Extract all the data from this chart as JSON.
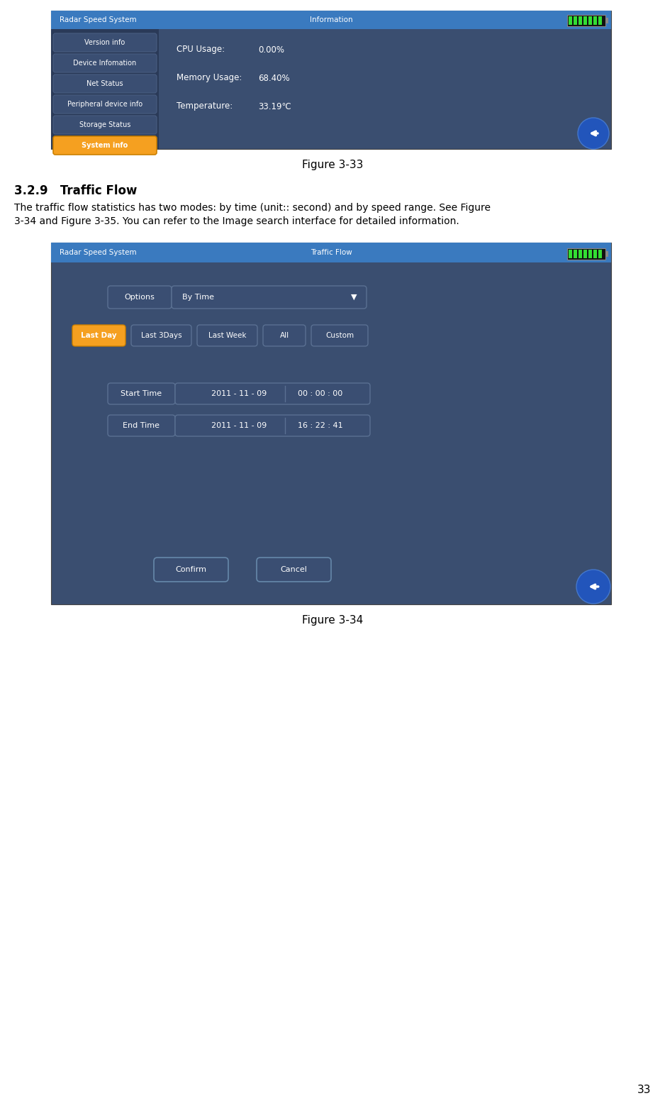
{
  "page_bg": "#ffffff",
  "fig1_caption": "Figure 3-33",
  "fig2_caption": "Figure 3-34",
  "section_title": "3.2.9   Traffic Flow",
  "section_body_line1": "The traffic flow statistics has two modes: by time (unit:: second) and by speed range. See Figure",
  "section_body_line2": "3-34 and Figure 3-35. You can refer to the Image search interface for detailed information.",
  "page_number": "33",
  "screen1": {
    "title_left": "Radar Speed System",
    "title_center": "Information",
    "bg_color": "#3a4e70",
    "sidebar_color": "#2a3a58",
    "title_bar_color": "#3a7abf",
    "active_button_color": "#f5a020",
    "active_button_edge": "#cc8000",
    "menu_item_color": "#3a4e72",
    "menu_item_edge": "#4a5e82",
    "menu_items": [
      "Version info",
      "Device Infomation",
      "Net Status",
      "Peripheral device info",
      "Storage Status",
      "System info"
    ],
    "active_item": "System info",
    "info_labels": [
      "CPU Usage:",
      "Memory Usage:",
      "Temperature:"
    ],
    "info_values": [
      "0.00%",
      "68.40%",
      "33.19℃"
    ]
  },
  "screen2": {
    "title_left": "Radar Speed System",
    "title_center": "Traffic Flow",
    "bg_color": "#3a4e70",
    "title_bar_color": "#3a7abf",
    "active_button_color": "#f5a020",
    "active_button_edge": "#cc8000",
    "button_color": "#3a4e72",
    "button_edge": "#5a7092",
    "options_label": "Options",
    "options_value": "By Time",
    "time_buttons": [
      "Last Day",
      "Last 3Days",
      "Last Week",
      "All",
      "Custom"
    ],
    "time_button_widths": [
      75,
      85,
      85,
      60,
      80
    ],
    "start_label": "Start Time",
    "start_date": "2011 - 11 - 09",
    "start_time": "00 : 00 : 00",
    "end_label": "End Time",
    "end_date": "2011 - 11 - 09",
    "end_time": "16 : 22 : 41",
    "confirm_label": "Confirm",
    "cancel_label": "Cancel"
  }
}
